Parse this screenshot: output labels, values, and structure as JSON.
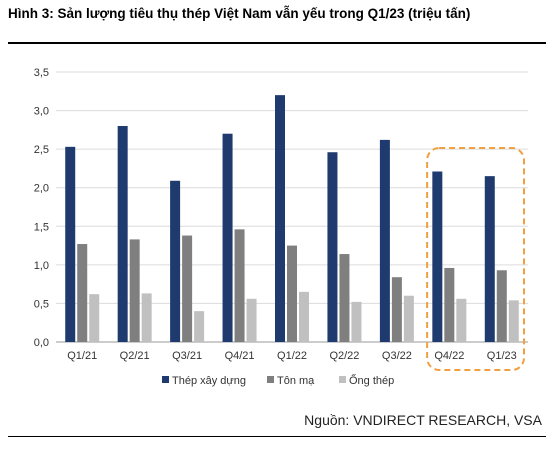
{
  "header": {
    "title": "Hình 3: Sản lượng tiêu thụ thép Việt Nam vẫn yếu trong Q1/23 (triệu tấn)"
  },
  "footer": {
    "source": "Nguồn: VNDIRECT RESEARCH, VSA"
  },
  "chart_data": {
    "type": "bar",
    "categories": [
      "Q1/21",
      "Q2/21",
      "Q3/21",
      "Q4/21",
      "Q1/22",
      "Q2/22",
      "Q3/22",
      "Q4/22",
      "Q1/23"
    ],
    "series": [
      {
        "name": "Thép xây dựng",
        "color": "#1f3a6e",
        "values": [
          2.53,
          2.8,
          2.09,
          2.7,
          3.2,
          2.46,
          2.62,
          2.21,
          2.15
        ]
      },
      {
        "name": "Tôn mạ",
        "color": "#7f7f7f",
        "values": [
          1.27,
          1.33,
          1.38,
          1.46,
          1.25,
          1.14,
          0.84,
          0.96,
          0.93
        ]
      },
      {
        "name": "Ống thép",
        "color": "#c0c0c0",
        "values": [
          0.62,
          0.63,
          0.4,
          0.56,
          0.65,
          0.52,
          0.6,
          0.56,
          0.54
        ]
      }
    ],
    "y_ticks": [
      "0,0",
      "0,5",
      "1,0",
      "1,5",
      "2,0",
      "2,5",
      "3,0",
      "3,5"
    ],
    "ylim": [
      0,
      3.5
    ],
    "grid": "horizontal",
    "legend": "bottom",
    "highlight_categories": [
      "Q4/22",
      "Q1/23"
    ],
    "highlight_color": "#f0a040"
  }
}
